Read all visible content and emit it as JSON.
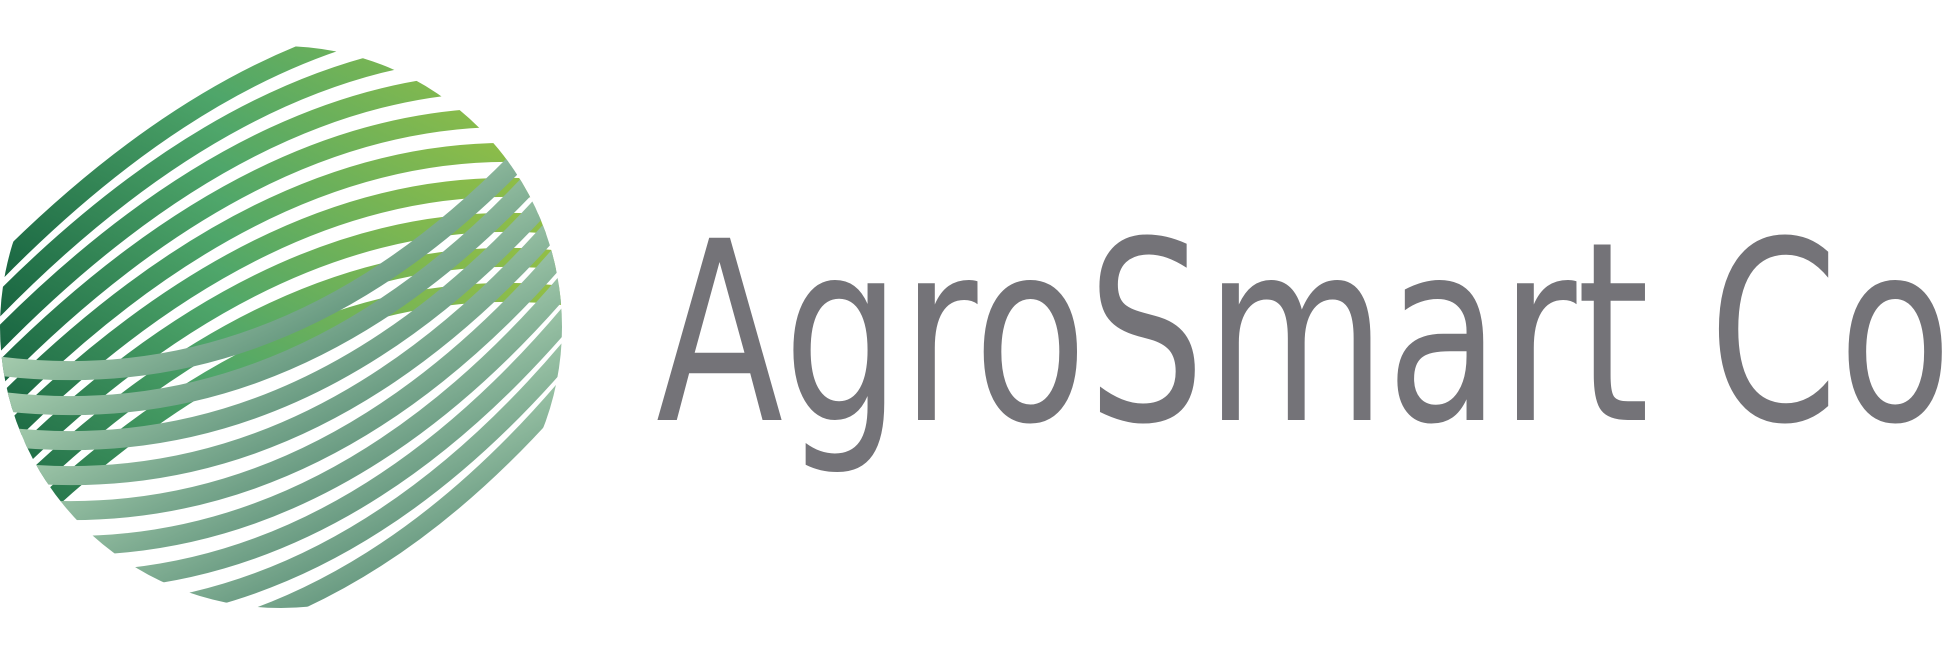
{
  "logo": {
    "name": "AgroSmart Co"
  }
}
